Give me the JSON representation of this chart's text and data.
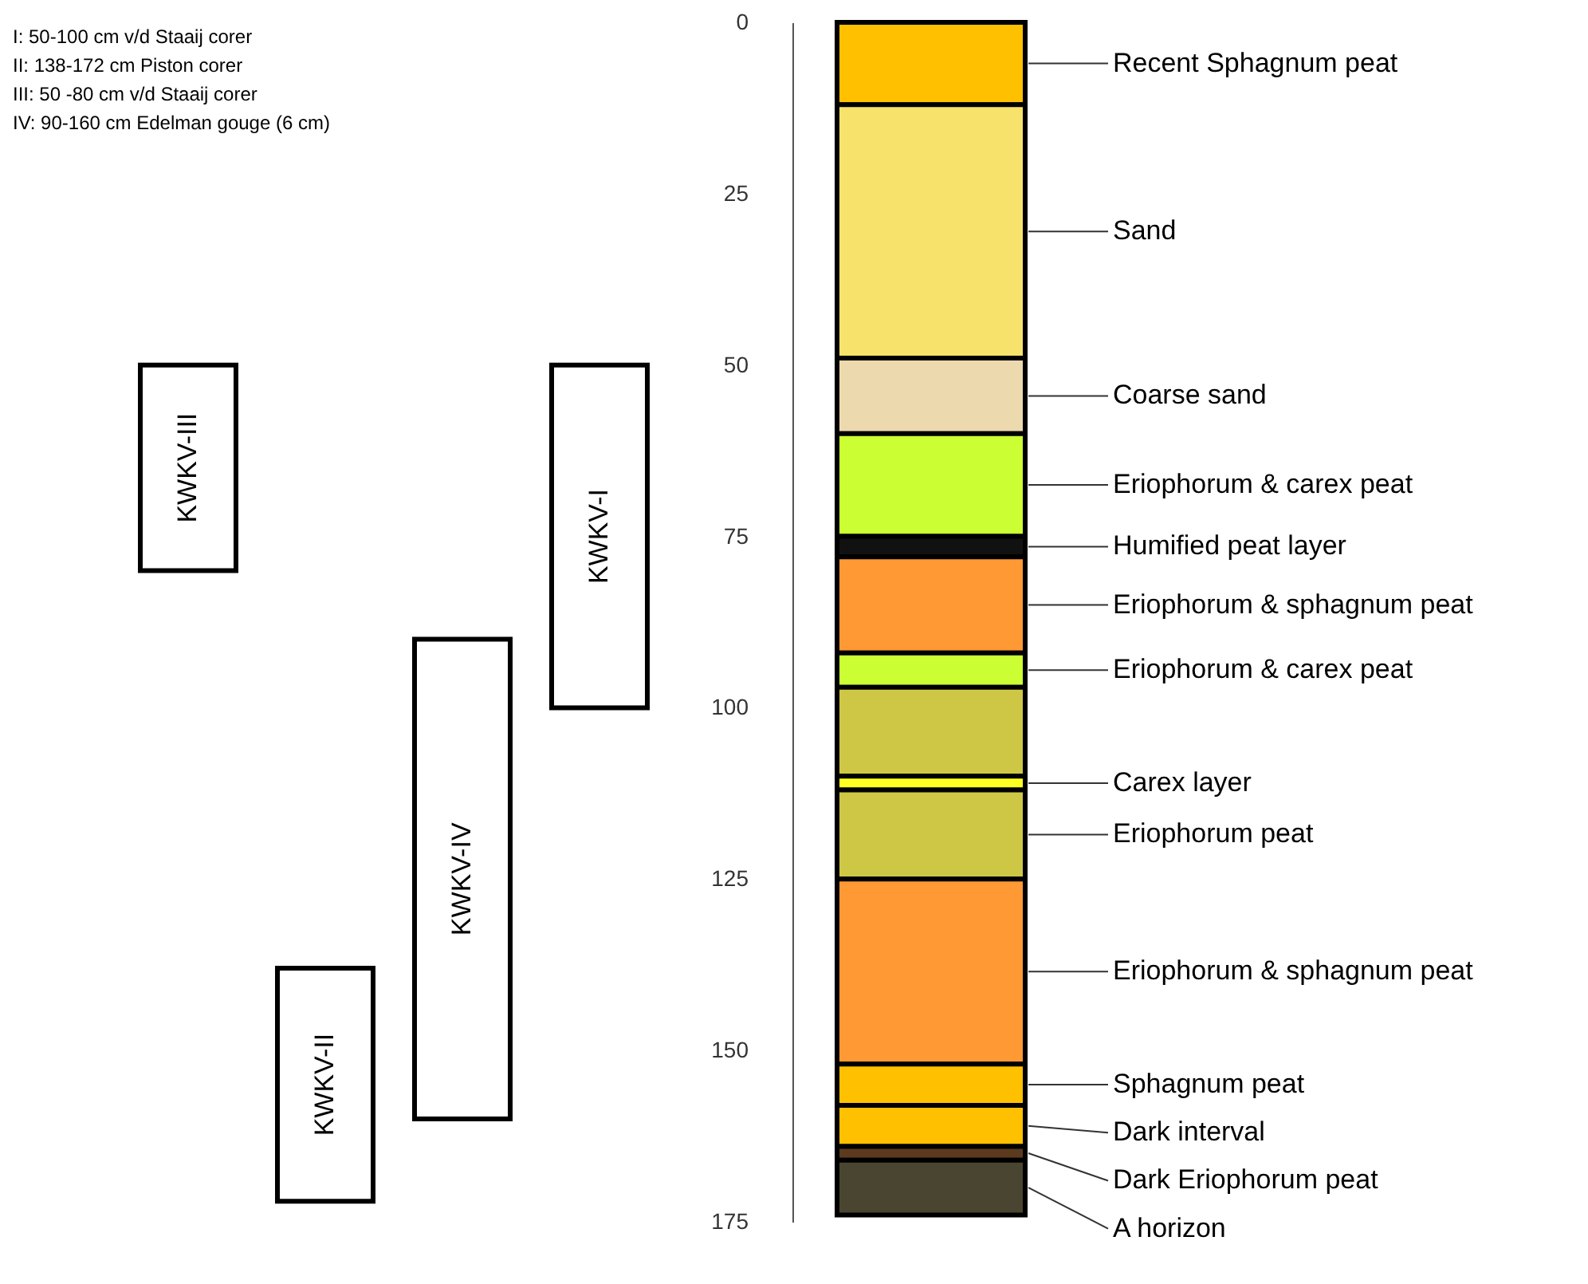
{
  "chart_data": [
    {
      "type": "bar",
      "categories": [
        "KWKV-III",
        "KWKV-II",
        "KWKV-IV",
        "KWKV-I"
      ],
      "ylim": [
        175,
        0
      ],
      "yticks": [
        0,
        25,
        50,
        75,
        100,
        125,
        150,
        175
      ],
      "tick_labels": false,
      "annotations": [
        "I: 50-100 cm      v/d Staaij corer",
        "II: 138-172 cm      Piston corer",
        "III: 50 -80 cm      v/d Staaij corer",
        "IV: 90-160 cm      Edelman gouge (6 cm)"
      ],
      "base": [
        50,
        138,
        90,
        50
      ],
      "values": [
        30,
        34,
        70,
        50
      ],
      "color": "#ffffff"
    },
    {
      "type": "bar",
      "stacked": true,
      "categories": [
        null
      ],
      "ylim": [
        175,
        0
      ],
      "yticks": [
        0,
        25,
        50,
        75,
        100,
        125,
        150,
        175
      ],
      "series": [
        {
          "name": "Recent Sphagnum peat",
          "color": "#ffc000",
          "values": [
            12
          ]
        },
        {
          "name": "Sand",
          "color": "#f7e36b",
          "values": [
            37
          ]
        },
        {
          "name": "Coarse sand",
          "color": "#ecd9ae",
          "values": [
            11
          ]
        },
        {
          "name": "Eriophorum & carex peat",
          "color": "#ccff33",
          "values": [
            15
          ]
        },
        {
          "name": "Humified peat layer",
          "color": "#111111",
          "values": [
            3
          ]
        },
        {
          "name": "Eriophorum & sphagnum peat",
          "color": "#ff9933",
          "values": [
            14
          ]
        },
        {
          "name": "Eriophorum & carex peat",
          "color": "#ccff33",
          "values": [
            5
          ]
        },
        {
          "color": "#cdc745",
          "values": [
            13
          ]
        },
        {
          "name": "Carex layer",
          "color": "#ffff22",
          "values": [
            2
          ]
        },
        {
          "name": "Eriophorum peat",
          "color": "#cdc745",
          "values": [
            13
          ]
        },
        {
          "name": "Eriophorum & sphagnum peat",
          "color": "#ff9933",
          "values": [
            27
          ]
        },
        {
          "name": "Sphagnum peat",
          "color": "#ffc000",
          "values": [
            6
          ]
        },
        {
          "name": "Dark interval",
          "color": "#ffc000",
          "values": [
            6
          ]
        },
        {
          "name": "Dark Eriophorum peat",
          "color": "#5c3a1e",
          "values": [
            2
          ]
        },
        {
          "name": "A horizon",
          "color": "#4a4530",
          "values": [
            8
          ]
        }
      ]
    }
  ]
}
